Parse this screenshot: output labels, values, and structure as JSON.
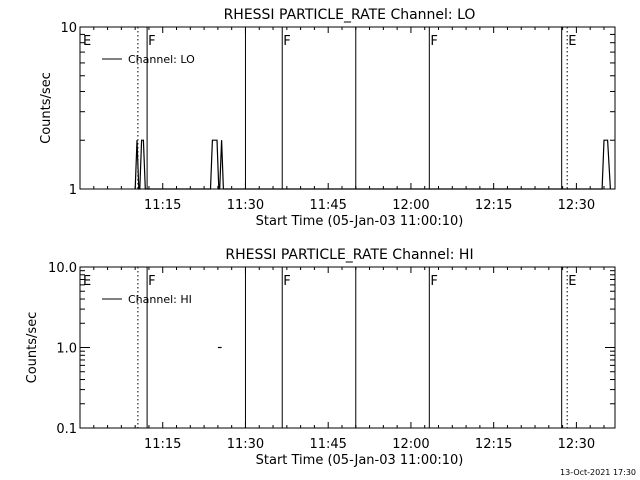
{
  "footer": {
    "timestamp": "13-Oct-2021 17:30"
  },
  "chart_data": [
    {
      "type": "line",
      "title": "RHESSI PARTICLE_RATE Channel: LO",
      "xlabel": "Start Time (05-Jan-03 11:00:10)",
      "ylabel": "Counts/sec",
      "yscale": "log",
      "ylim": [
        1,
        10
      ],
      "yticks": [
        1,
        10
      ],
      "ytick_labels": [
        "1",
        "10"
      ],
      "xlim": [
        0,
        5820
      ],
      "xticks": [
        900,
        1800,
        2700,
        3600,
        4500,
        5400
      ],
      "xtick_labels": [
        "11:15",
        "11:30",
        "11:45",
        "12:00",
        "12:15",
        "12:30"
      ],
      "legend": {
        "position": "top-left",
        "entries": [
          "Channel: LO"
        ]
      },
      "grid": false,
      "flags": [
        {
          "label": "E",
          "t": 0,
          "line": "none"
        },
        {
          "label": "",
          "t": 630,
          "line": "dotted"
        },
        {
          "label": "F",
          "t": 730,
          "line": "solid"
        },
        {
          "label": "",
          "t": 1800,
          "line": "solid"
        },
        {
          "label": "F",
          "t": 2200,
          "line": "solid"
        },
        {
          "label": "",
          "t": 3000,
          "line": "solid"
        },
        {
          "label": "F",
          "t": 3800,
          "line": "solid"
        },
        {
          "label": "",
          "t": 5240,
          "line": "solid"
        },
        {
          "label": "E",
          "t": 5300,
          "line": "dotted"
        },
        {
          "label": "",
          "t": 5940,
          "line": "dotted"
        }
      ],
      "series": [
        {
          "name": "Channel: LO",
          "points": [
            [
              600,
              1
            ],
            [
              620,
              2
            ],
            [
              640,
              1
            ],
            [
              650,
              1
            ],
            [
              670,
              2
            ],
            [
              690,
              2
            ],
            [
              710,
              1
            ],
            [
              1420,
              1
            ],
            [
              1440,
              2
            ],
            [
              1490,
              2
            ],
            [
              1510,
              1
            ],
            [
              1520,
              1
            ],
            [
              1540,
              2
            ],
            [
              1560,
              1
            ],
            [
              5680,
              1
            ],
            [
              5700,
              2
            ],
            [
              5740,
              2
            ],
            [
              5770,
              1
            ]
          ]
        }
      ]
    },
    {
      "type": "line",
      "title": "RHESSI PARTICLE_RATE Channel: HI",
      "xlabel": "Start Time (05-Jan-03 11:00:10)",
      "ylabel": "Counts/sec",
      "yscale": "log",
      "ylim": [
        0.1,
        10
      ],
      "yticks": [
        0.1,
        1,
        10
      ],
      "ytick_labels": [
        "0.1",
        "1.0",
        "10.0"
      ],
      "xlim": [
        0,
        5820
      ],
      "xticks": [
        900,
        1800,
        2700,
        3600,
        4500,
        5400
      ],
      "xtick_labels": [
        "11:15",
        "11:30",
        "11:45",
        "12:00",
        "12:15",
        "12:30"
      ],
      "legend": {
        "position": "top-left",
        "entries": [
          "Channel: HI"
        ]
      },
      "grid": false,
      "flags": [
        {
          "label": "E",
          "t": 0,
          "line": "none"
        },
        {
          "label": "",
          "t": 630,
          "line": "dotted"
        },
        {
          "label": "F",
          "t": 730,
          "line": "solid"
        },
        {
          "label": "",
          "t": 1800,
          "line": "solid"
        },
        {
          "label": "F",
          "t": 2200,
          "line": "solid"
        },
        {
          "label": "",
          "t": 3000,
          "line": "solid"
        },
        {
          "label": "F",
          "t": 3800,
          "line": "solid"
        },
        {
          "label": "",
          "t": 5240,
          "line": "solid"
        },
        {
          "label": "E",
          "t": 5300,
          "line": "dotted"
        },
        {
          "label": "",
          "t": 5940,
          "line": "dotted"
        }
      ],
      "series": [
        {
          "name": "Channel: HI",
          "points": [
            [
              1500,
              1
            ],
            [
              1540,
              1
            ]
          ]
        }
      ]
    }
  ]
}
